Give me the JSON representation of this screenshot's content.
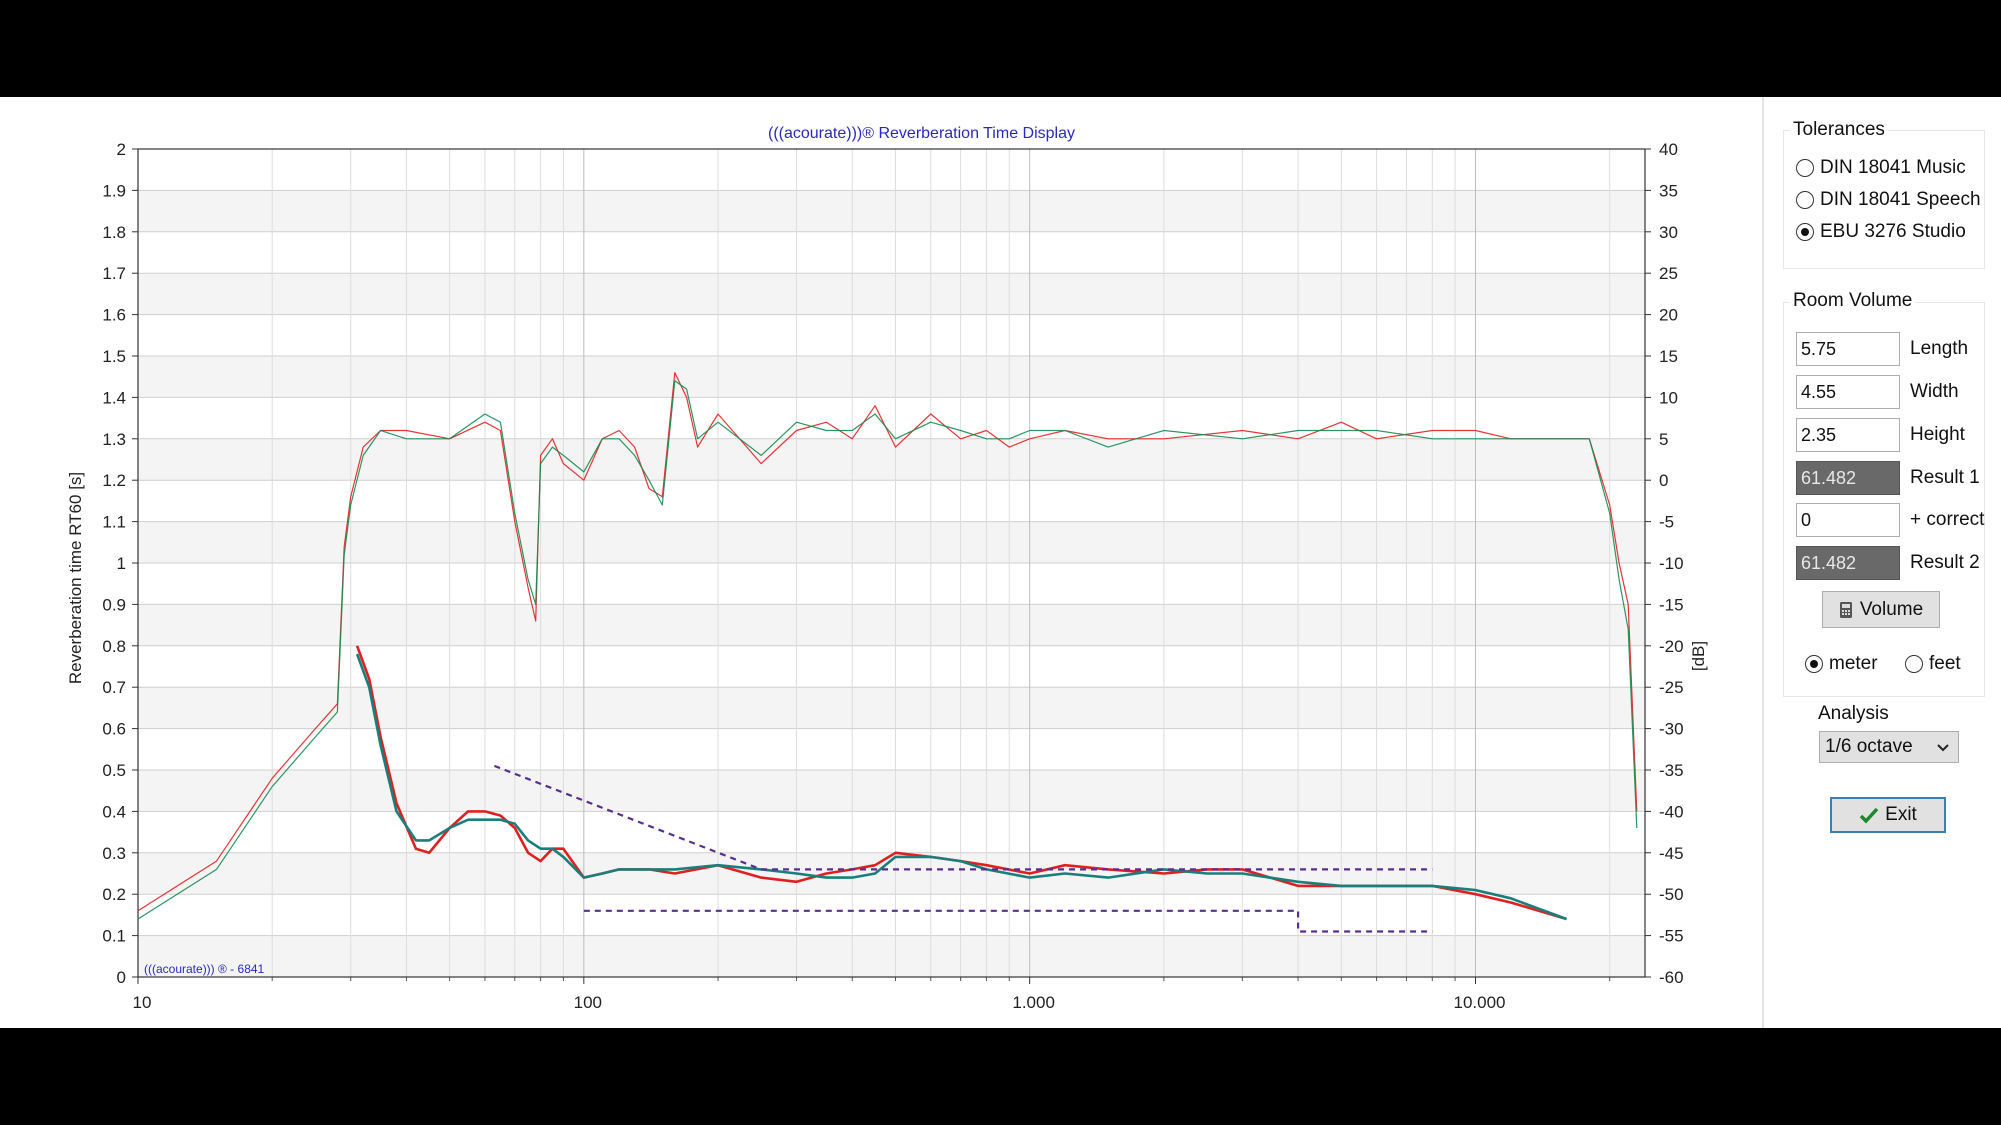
{
  "chart_data": {
    "type": "line",
    "title": "(((acourate)))® Reverberation Time Display",
    "watermark": "(((acourate))) ® - 6841",
    "xscale": "log",
    "xlim": [
      10,
      24000
    ],
    "xticks": [
      10,
      100,
      1000,
      10000
    ],
    "xtick_labels": [
      "10",
      "100",
      "1.000",
      "10.000"
    ],
    "ylabel": "Reverberation time RT60 [s]",
    "ylim": [
      0,
      2
    ],
    "yticks": [
      0,
      0.1,
      0.2,
      0.3,
      0.4,
      0.5,
      0.6,
      0.7,
      0.8,
      0.9,
      1,
      1.1,
      1.2,
      1.3,
      1.4,
      1.5,
      1.6,
      1.7,
      1.8,
      1.9,
      2
    ],
    "ytick_labels": [
      "0",
      "0.1",
      "0.2",
      "0.3",
      "0.4",
      "0.5",
      "0.6",
      "0.7",
      "0.8",
      "0.9",
      "1",
      "1.1",
      "1.2",
      "1.3",
      "1.4",
      "1.5",
      "1.6",
      "1.7",
      "1.8",
      "1.9",
      "2"
    ],
    "y2label": "[dB]",
    "y2lim": [
      -60,
      40
    ],
    "y2ticks": [
      -60,
      -55,
      -50,
      -45,
      -40,
      -35,
      -30,
      -25,
      -20,
      -15,
      -10,
      -5,
      0,
      5,
      10,
      15,
      20,
      25,
      30,
      35,
      40
    ],
    "y2tick_labels": [
      "-60",
      "-55",
      "-50",
      "-45",
      "-40",
      "-35",
      "-30",
      "-25",
      "-20",
      "-15",
      "-10",
      "-5",
      "0",
      "5",
      "10",
      "15",
      "20",
      "25",
      "30",
      "35",
      "40"
    ],
    "grid": true,
    "colors": {
      "red": "#e02020",
      "green": "#168a52",
      "teal": "#1a7f7a",
      "tolerance": "#5a2e91"
    },
    "series": [
      {
        "color": "red",
        "axis": "dB",
        "x": [
          10,
          15,
          20,
          25,
          28,
          29,
          30,
          32,
          35,
          40,
          50,
          60,
          65,
          70,
          75,
          78,
          80,
          85,
          90,
          100,
          110,
          120,
          130,
          140,
          150,
          160,
          170,
          180,
          200,
          250,
          300,
          350,
          400,
          450,
          500,
          600,
          700,
          800,
          900,
          1000,
          1200,
          1500,
          2000,
          3000,
          4000,
          5000,
          6000,
          8000,
          10000,
          12000,
          15000,
          18000,
          20000,
          21000,
          22000,
          23000
        ],
        "y": [
          -52,
          -46,
          -36,
          -30,
          -27,
          -8,
          -2,
          4,
          6,
          6,
          5,
          7,
          6,
          -5,
          -13,
          -17,
          3,
          5,
          2,
          0,
          5,
          6,
          4,
          -1,
          -2,
          13,
          10,
          4,
          8,
          2,
          6,
          7,
          5,
          9,
          4,
          8,
          5,
          6,
          4,
          5,
          6,
          5,
          5,
          6,
          5,
          7,
          5,
          6,
          6,
          5,
          5,
          5,
          -3,
          -10,
          -15,
          -40
        ]
      },
      {
        "color": "green",
        "axis": "dB",
        "x": [
          10,
          15,
          20,
          25,
          28,
          29,
          30,
          32,
          35,
          40,
          50,
          60,
          65,
          70,
          75,
          78,
          80,
          85,
          90,
          100,
          110,
          120,
          130,
          140,
          150,
          160,
          170,
          180,
          200,
          250,
          300,
          350,
          400,
          450,
          500,
          600,
          700,
          800,
          900,
          1000,
          1200,
          1500,
          2000,
          3000,
          4000,
          5000,
          6000,
          8000,
          10000,
          12000,
          15000,
          18000,
          20000,
          21000,
          22000,
          23000
        ],
        "y": [
          -53,
          -47,
          -37,
          -31,
          -28,
          -9,
          -3,
          3,
          6,
          5,
          5,
          8,
          7,
          -4,
          -12,
          -15,
          2,
          4,
          3,
          1,
          5,
          5,
          3,
          0,
          -3,
          12,
          11,
          5,
          7,
          3,
          7,
          6,
          6,
          8,
          5,
          7,
          6,
          5,
          5,
          6,
          6,
          4,
          6,
          5,
          6,
          6,
          6,
          5,
          5,
          5,
          5,
          5,
          -4,
          -12,
          -18,
          -42
        ]
      },
      {
        "color": "red",
        "axis": "RT60",
        "x": [
          31,
          33,
          35,
          38,
          42,
          45,
          50,
          55,
          60,
          65,
          70,
          75,
          80,
          85,
          90,
          100,
          110,
          120,
          140,
          160,
          200,
          250,
          300,
          350,
          400,
          450,
          500,
          600,
          700,
          800,
          1000,
          1200,
          1500,
          2000,
          2500,
          3000,
          4000,
          5000,
          6000,
          8000,
          10000,
          12000,
          16000
        ],
        "y": [
          0.8,
          0.72,
          0.58,
          0.42,
          0.31,
          0.3,
          0.36,
          0.4,
          0.4,
          0.39,
          0.36,
          0.3,
          0.28,
          0.31,
          0.31,
          0.24,
          0.25,
          0.26,
          0.26,
          0.25,
          0.27,
          0.24,
          0.23,
          0.25,
          0.26,
          0.27,
          0.3,
          0.29,
          0.28,
          0.27,
          0.25,
          0.27,
          0.26,
          0.25,
          0.26,
          0.26,
          0.22,
          0.22,
          0.22,
          0.22,
          0.2,
          0.18,
          0.14
        ]
      },
      {
        "color": "teal",
        "axis": "RT60",
        "x": [
          31,
          33,
          35,
          38,
          42,
          45,
          50,
          55,
          60,
          65,
          70,
          75,
          80,
          85,
          90,
          100,
          110,
          120,
          140,
          160,
          200,
          250,
          300,
          350,
          400,
          450,
          500,
          600,
          700,
          800,
          1000,
          1200,
          1500,
          2000,
          2500,
          3000,
          4000,
          5000,
          6000,
          8000,
          10000,
          12000,
          16000
        ],
        "y": [
          0.78,
          0.7,
          0.56,
          0.4,
          0.33,
          0.33,
          0.36,
          0.38,
          0.38,
          0.38,
          0.37,
          0.33,
          0.31,
          0.31,
          0.29,
          0.24,
          0.25,
          0.26,
          0.26,
          0.26,
          0.27,
          0.26,
          0.25,
          0.24,
          0.24,
          0.25,
          0.29,
          0.29,
          0.28,
          0.26,
          0.24,
          0.25,
          0.24,
          0.26,
          0.25,
          0.25,
          0.23,
          0.22,
          0.22,
          0.22,
          0.21,
          0.19,
          0.14
        ]
      }
    ],
    "tolerance": {
      "upper": {
        "x": [
          63,
          250,
          8000
        ],
        "y": [
          0.51,
          0.26,
          0.26
        ]
      },
      "lower": {
        "x": [
          100,
          4000,
          4000,
          8000
        ],
        "y": [
          0.16,
          0.16,
          0.11,
          0.11
        ]
      }
    }
  },
  "panel": {
    "tolerances": {
      "title": "Tolerances",
      "options": [
        {
          "label": "DIN 18041 Music",
          "checked": false
        },
        {
          "label": "DIN 18041 Speech",
          "checked": false
        },
        {
          "label": "EBU 3276 Studio",
          "checked": true
        }
      ]
    },
    "room_volume": {
      "title": "Room Volume",
      "length": {
        "value": "5.75",
        "label": "Length"
      },
      "width": {
        "value": "4.55",
        "label": "Width"
      },
      "height": {
        "value": "2.35",
        "label": "Height"
      },
      "result1": {
        "value": "61.482",
        "label": "Result 1"
      },
      "correct": {
        "value": "0",
        "label": "+ correct"
      },
      "result2": {
        "value": "61.482",
        "label": "Result 2"
      },
      "volume_button": "Volume",
      "units": [
        {
          "label": "meter",
          "checked": true
        },
        {
          "label": "feet",
          "checked": false
        }
      ]
    },
    "analysis": {
      "label": "Analysis",
      "selected": "1/6 octave"
    },
    "exit_button": "Exit"
  }
}
